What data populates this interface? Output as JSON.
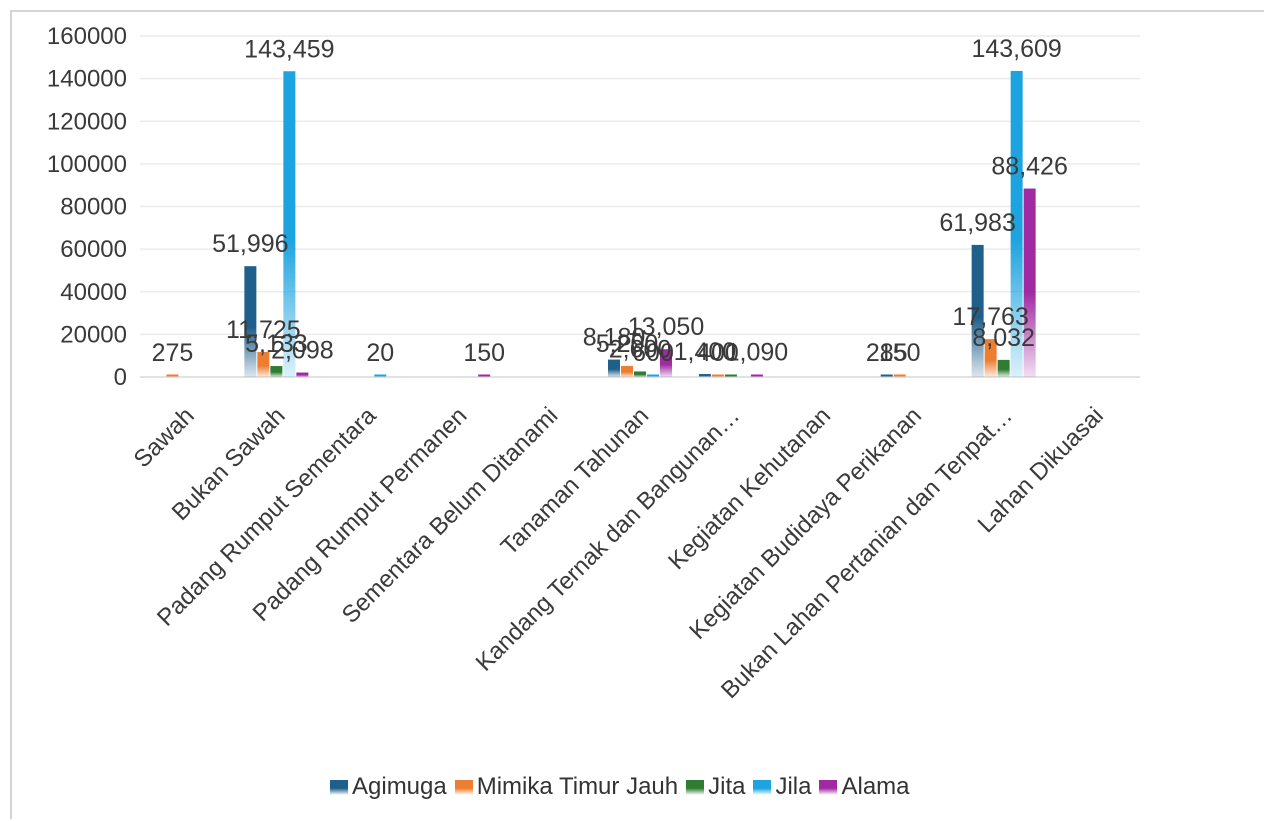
{
  "chart_data": {
    "type": "bar",
    "categories": [
      "Sawah",
      "Bukan Sawah",
      "Padang Rumput Sementara",
      "Padang Rumput Permanen",
      "Sementara Belum Ditanami",
      "Tanaman Tahunan",
      "Kandang Ternak dan Bangunan…",
      "Kegiatan Kehutanan",
      "Kegiatan Budidaya Perikanan",
      "Bukan Lahan Pertanian dan Tenpat…",
      "Lahan Dikuasai"
    ],
    "series": [
      {
        "name": "Agimuga",
        "color": "#1f5f8b",
        "values": [
          0,
          51996,
          0,
          0,
          0,
          8180,
          1400,
          0,
          285,
          61983,
          null
        ]
      },
      {
        "name": "Mimika Timur Jauh",
        "color": "#ed7d31",
        "values": [
          275,
          11725,
          0,
          0,
          0,
          5200,
          400,
          0,
          150,
          17763,
          null
        ]
      },
      {
        "name": "Jita",
        "color": "#2e7d32",
        "values": [
          0,
          5133,
          0,
          0,
          0,
          2600,
          500,
          0,
          0,
          8032,
          null
        ]
      },
      {
        "name": "Jila",
        "color": "#1ca3e0",
        "values": [
          0,
          143459,
          20,
          0,
          0,
          600,
          0,
          0,
          0,
          143609,
          null
        ]
      },
      {
        "name": "Alama",
        "color": "#a12aa3",
        "values": [
          0,
          2098,
          0,
          150,
          0,
          13050,
          1090,
          0,
          0,
          88426,
          null
        ]
      }
    ],
    "data_labels": [
      {
        "category": 0,
        "series": 1,
        "text": "275"
      },
      {
        "category": 1,
        "series": 0,
        "text": "51,996"
      },
      {
        "category": 1,
        "series": 1,
        "text": "11,725"
      },
      {
        "category": 1,
        "series": 2,
        "text": "5,133"
      },
      {
        "category": 1,
        "series": 3,
        "text": "143,459"
      },
      {
        "category": 1,
        "series": 4,
        "text": "2,098"
      },
      {
        "category": 2,
        "series": 3,
        "text": "20"
      },
      {
        "category": 3,
        "series": 4,
        "text": "150"
      },
      {
        "category": 5,
        "series": 0,
        "text": "8,180"
      },
      {
        "category": 5,
        "series": 1,
        "text": "5,200"
      },
      {
        "category": 5,
        "series": 2,
        "text": "2,600"
      },
      {
        "category": 5,
        "series": 3,
        "text": "600"
      },
      {
        "category": 5,
        "series": 4,
        "text": "13,050"
      },
      {
        "category": 6,
        "series": 0,
        "text": "1,400"
      },
      {
        "category": 6,
        "series": 1,
        "text": "400"
      },
      {
        "category": 6,
        "series": 4,
        "text": "1,090"
      },
      {
        "category": 8,
        "series": 0,
        "text": "285"
      },
      {
        "category": 8,
        "series": 1,
        "text": "150"
      },
      {
        "category": 9,
        "series": 0,
        "text": "61,983"
      },
      {
        "category": 9,
        "series": 1,
        "text": "17,763"
      },
      {
        "category": 9,
        "series": 2,
        "text": "8,032"
      },
      {
        "category": 9,
        "series": 3,
        "text": "143,609"
      },
      {
        "category": 9,
        "series": 4,
        "text": "88,426"
      }
    ],
    "y_ticks": [
      "0",
      "20000",
      "40000",
      "60000",
      "80000",
      "100000",
      "120000",
      "140000",
      "160000"
    ],
    "ylim": [
      0,
      160000
    ],
    "title": "",
    "xlabel": "",
    "ylabel": "",
    "grid": true,
    "legend_position": "bottom"
  }
}
